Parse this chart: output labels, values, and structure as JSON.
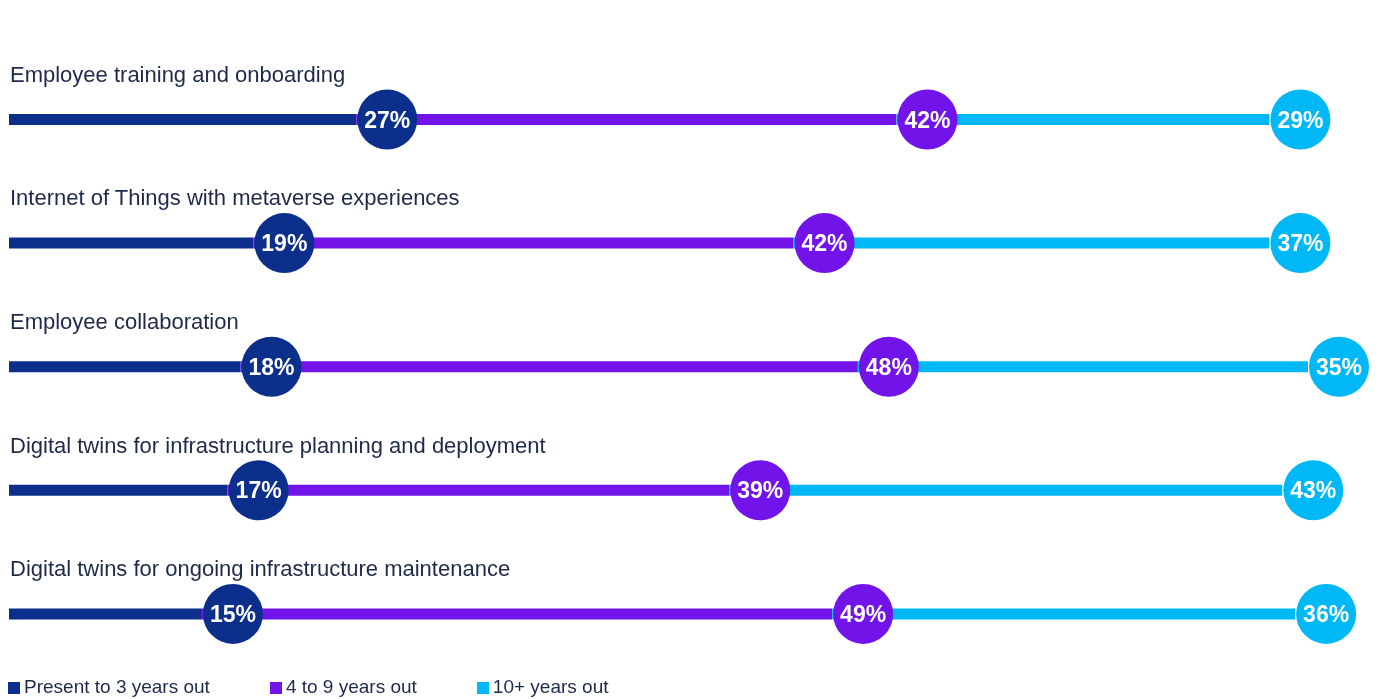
{
  "chart_data": {
    "type": "bar",
    "orientation": "horizontal",
    "stacked": true,
    "categories": [
      "Employee training and onboarding",
      "Internet of Things with metaverse experiences",
      "Employee collaboration",
      "Digital twins for infrastructure planning and deployment",
      "Digital twins for ongoing infrastructure maintenance"
    ],
    "series": [
      {
        "name": "Present to 3 years out",
        "color": "#0d2f8c",
        "values": [
          27,
          19,
          18,
          17,
          15
        ],
        "value_labels": [
          "27%",
          "19%",
          "18%",
          "17%",
          "15%"
        ]
      },
      {
        "name": "4 to 9 years out",
        "color": "#7213ea",
        "values": [
          42,
          42,
          48,
          39,
          49
        ],
        "value_labels": [
          "42%",
          "42%",
          "48%",
          "39%",
          "49%"
        ]
      },
      {
        "name": "10+ years out",
        "color": "#00b8f5",
        "values": [
          29,
          37,
          35,
          43,
          36
        ],
        "value_labels": [
          "29%",
          "37%",
          "35%",
          "43%",
          "36%"
        ]
      }
    ],
    "legend": "bottom left"
  }
}
